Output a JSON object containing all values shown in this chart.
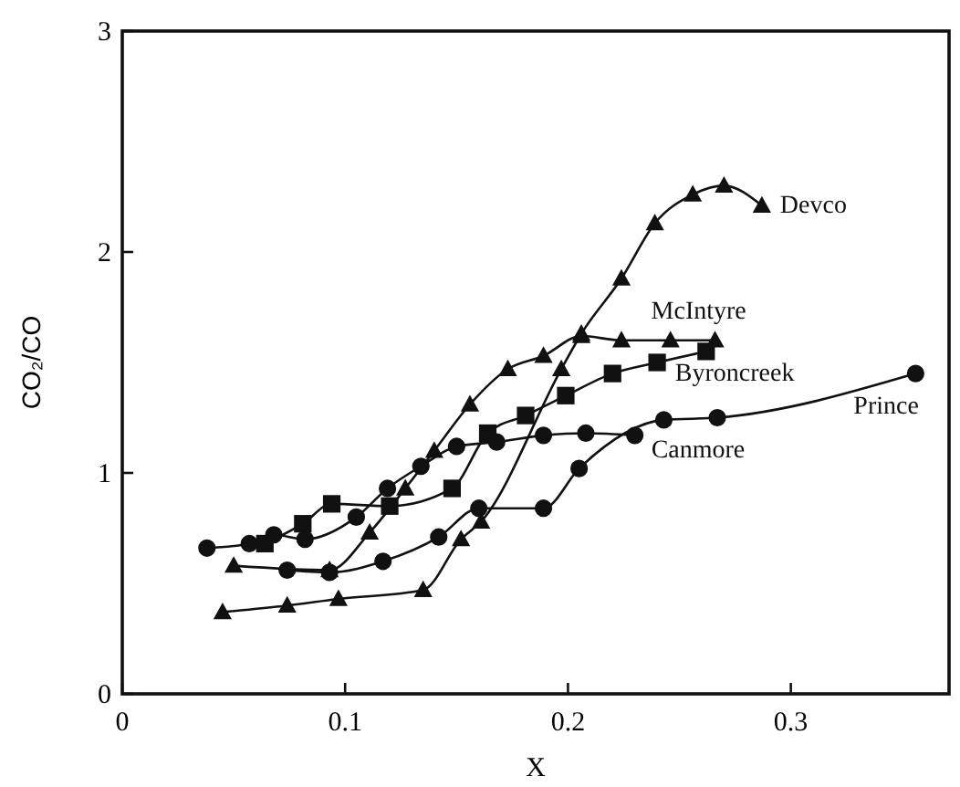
{
  "chart_data": {
    "type": "line",
    "xlabel": "X",
    "ylabel": "CO₂/CO",
    "xlim": [
      0,
      0.371
    ],
    "ylim": [
      0,
      3
    ],
    "xticks": [
      0,
      0.1,
      0.2,
      0.3
    ],
    "yticks": [
      0,
      1,
      2,
      3
    ],
    "grid": false,
    "line_style": "solid",
    "series": [
      {
        "name": "Devco",
        "color": "#111111",
        "marker": "triangle",
        "x": [
          0.045,
          0.074,
          0.097,
          0.135,
          0.152,
          0.161,
          0.197,
          0.206,
          0.224,
          0.239,
          0.256,
          0.27,
          0.287
        ],
        "values": [
          0.37,
          0.4,
          0.43,
          0.47,
          0.7,
          0.78,
          1.47,
          1.63,
          1.88,
          2.13,
          2.26,
          2.3,
          2.21
        ]
      },
      {
        "name": "McIntyre",
        "color": "#111111",
        "marker": "triangle",
        "x": [
          0.05,
          0.093,
          0.111,
          0.127,
          0.14,
          0.156,
          0.173,
          0.189,
          0.206,
          0.224,
          0.246,
          0.266
        ],
        "values": [
          0.58,
          0.56,
          0.73,
          0.93,
          1.1,
          1.31,
          1.47,
          1.53,
          1.62,
          1.6,
          1.6,
          1.6
        ]
      },
      {
        "name": "Byroncreek",
        "color": "#111111",
        "marker": "square",
        "x": [
          0.064,
          0.081,
          0.094,
          0.12,
          0.148,
          0.164,
          0.181,
          0.199,
          0.22,
          0.24,
          0.262
        ],
        "values": [
          0.68,
          0.77,
          0.86,
          0.85,
          0.93,
          1.18,
          1.26,
          1.35,
          1.45,
          1.5,
          1.55
        ]
      },
      {
        "name": "Canmore",
        "color": "#111111",
        "marker": "circle",
        "x": [
          0.038,
          0.057,
          0.068,
          0.082,
          0.105,
          0.119,
          0.134,
          0.15,
          0.168,
          0.189,
          0.208,
          0.23
        ],
        "values": [
          0.66,
          0.68,
          0.72,
          0.7,
          0.8,
          0.93,
          1.03,
          1.12,
          1.14,
          1.17,
          1.18,
          1.17
        ]
      },
      {
        "name": "Prince",
        "color": "#111111",
        "marker": "circle",
        "x": [
          0.074,
          0.093,
          0.117,
          0.142,
          0.16,
          0.189,
          0.205,
          0.243,
          0.267,
          0.356
        ],
        "values": [
          0.56,
          0.55,
          0.6,
          0.71,
          0.84,
          0.84,
          1.02,
          1.24,
          1.25,
          1.45
        ]
      }
    ]
  }
}
